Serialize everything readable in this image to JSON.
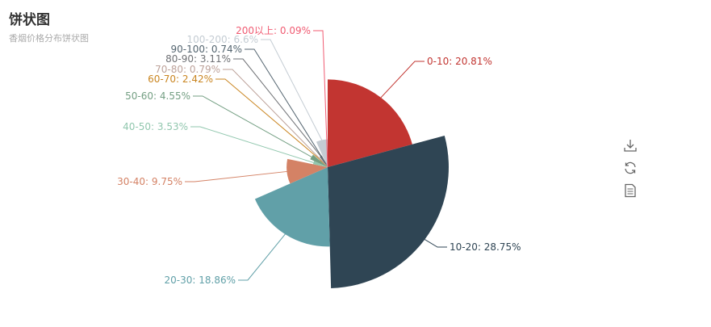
{
  "title": "饼状图",
  "subtitle": "香烟价格分布饼状图",
  "toolbox": {
    "icons": [
      "download-icon",
      "refresh-icon",
      "data-view-icon"
    ]
  },
  "colors": [
    "#c23531",
    "#2f4554",
    "#61a0a8",
    "#d48265",
    "#91c7ae",
    "#749f83",
    "#ca8622",
    "#bda29a",
    "#6e7074",
    "#546570",
    "#c4ccd3",
    "#f05b72"
  ],
  "chart_data": {
    "type": "pie",
    "rose_type": "radius",
    "title": "饼状图",
    "subtitle": "香烟价格分布饼状图",
    "categories": [
      "0-10",
      "10-20",
      "20-30",
      "30-40",
      "40-50",
      "50-60",
      "60-70",
      "70-80",
      "80-90",
      "90-100",
      "100-200",
      "200以上"
    ],
    "values": [
      20.81,
      28.75,
      18.86,
      9.75,
      3.53,
      4.55,
      2.42,
      0.79,
      3.11,
      0.74,
      6.6,
      0.09
    ],
    "labels": [
      "0-10: 20.81%",
      "10-20: 28.75%",
      "20-30: 18.86%",
      "30-40: 9.75%",
      "40-50: 3.53%",
      "50-60: 4.55%",
      "60-70: 2.42%",
      "70-80: 0.79%",
      "80-90: 3.11%",
      "90-100: 0.74%",
      "100-200: 6.6%",
      "200以上: 0.09%"
    ]
  }
}
